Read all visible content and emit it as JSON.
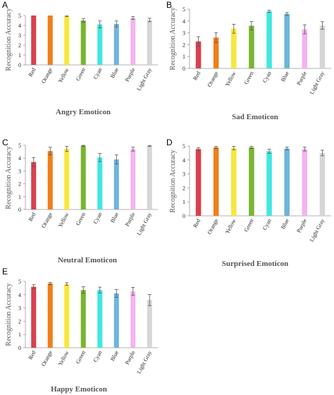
{
  "chart_data": [
    {
      "type": "bar",
      "panel": "A",
      "title": "Angry Emoticon",
      "ylabel": "Recognition Accuracy",
      "ylim": [
        0,
        5
      ],
      "yticks": [
        "0",
        "1",
        "2",
        "3",
        "4",
        "5"
      ],
      "categories": [
        "Red",
        "Orange",
        "Yellow",
        "Green",
        "Cyan",
        "Blue",
        "Purple",
        "Light Gray"
      ],
      "values": [
        5.0,
        5.0,
        4.92,
        4.5,
        4.1,
        4.15,
        4.75,
        4.55
      ],
      "errors": [
        0.0,
        0.0,
        0.04,
        0.2,
        0.35,
        0.3,
        0.15,
        0.18
      ]
    },
    {
      "type": "bar",
      "panel": "B",
      "title": "Sad Emoticon",
      "ylabel": "Recognition Accuracy",
      "ylim": [
        0,
        5
      ],
      "yticks": [
        "0",
        "1",
        "2",
        "3",
        "4",
        "5"
      ],
      "categories": [
        "Red",
        "Orange",
        "Yellow",
        "Green",
        "Cyan",
        "Blue",
        "Purple",
        "Light Gray"
      ],
      "values": [
        2.28,
        2.6,
        3.35,
        3.6,
        4.82,
        4.6,
        3.3,
        3.62
      ],
      "errors": [
        0.4,
        0.42,
        0.38,
        0.35,
        0.1,
        0.12,
        0.38,
        0.32
      ]
    },
    {
      "type": "bar",
      "panel": "C",
      "title": "Neutral Emoticon",
      "ylabel": "Recognition Accuracy",
      "ylim": [
        0,
        5
      ],
      "yticks": [
        "0",
        "1",
        "2",
        "3",
        "4",
        "5"
      ],
      "categories": [
        "Red",
        "Orange",
        "Yellow",
        "Green",
        "Cyan",
        "Blue",
        "Purple",
        "Light Gray"
      ],
      "values": [
        3.7,
        4.55,
        4.72,
        4.97,
        4.05,
        3.9,
        4.7,
        4.95
      ],
      "errors": [
        0.35,
        0.3,
        0.2,
        0.03,
        0.32,
        0.35,
        0.15,
        0.04
      ]
    },
    {
      "type": "bar",
      "panel": "D",
      "title": "Surprised Emoticon",
      "ylabel": "Recognition Accuracy",
      "ylim": [
        0,
        5
      ],
      "yticks": [
        "0",
        "1",
        "2",
        "3",
        "4",
        "5"
      ],
      "categories": [
        "Red",
        "Orange",
        "Yellow",
        "Green",
        "Cyan",
        "Blue",
        "Purple",
        "Light Gray"
      ],
      "values": [
        4.78,
        4.9,
        4.85,
        4.9,
        4.62,
        4.82,
        4.78,
        4.5
      ],
      "errors": [
        0.1,
        0.08,
        0.12,
        0.08,
        0.15,
        0.1,
        0.14,
        0.2
      ]
    },
    {
      "type": "bar",
      "panel": "E",
      "title": "Happy Emoticon",
      "ylabel": "Recognition Accuracy",
      "ylim": [
        0,
        5
      ],
      "yticks": [
        "0",
        "1",
        "2",
        "3",
        "4",
        "5"
      ],
      "categories": [
        "Red",
        "Orange",
        "Yellow",
        "Green",
        "Cyan",
        "Blue",
        "Purple",
        "Light Gray"
      ],
      "values": [
        4.6,
        4.85,
        4.8,
        4.35,
        4.35,
        4.1,
        4.25,
        3.6
      ],
      "errors": [
        0.15,
        0.08,
        0.1,
        0.25,
        0.22,
        0.3,
        0.3,
        0.42
      ]
    }
  ],
  "colors": [
    "#d9404e",
    "#f07e1a",
    "#f9e63c",
    "#79b52f",
    "#3fe8e0",
    "#6fb4dc",
    "#f2b4ee",
    "#d6d6d6"
  ],
  "error_color": "#555555"
}
